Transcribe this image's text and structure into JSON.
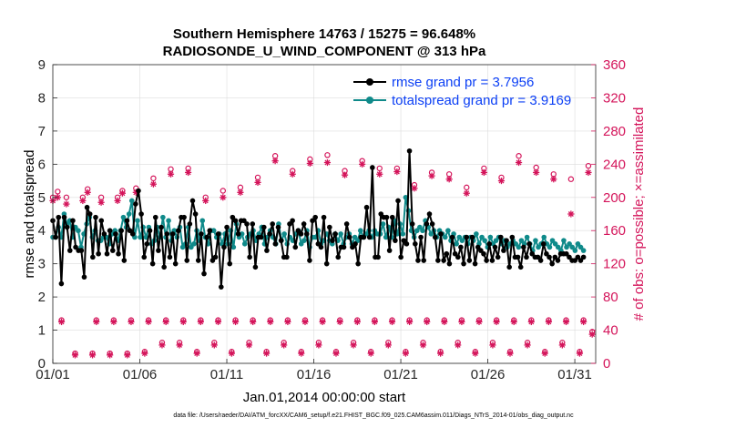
{
  "chart_data": {
    "type": "line",
    "title_line1": "Southern Hemisphere 14763 / 15275 = 96.648%",
    "title_line2": "RADIOSONDE_U_WIND_COMPONENT @ 313 hPa",
    "xlabel": "Jan.01,2014 00:00:00 start",
    "ylabel_left": "rmse and totalspread",
    "ylabel_right": "# of obs: o=possible; ×=assimilated",
    "footer": "data file: /Users/raeder/DAI/ATM_forcXX/CAM6_setup/f.e21.FHIST_BGC.f09_025.CAM6assim.011/Diags_NTrS_2014-01/obs_diag_output.nc",
    "xlim": [
      1,
      32.2
    ],
    "x_ticks": [
      1,
      6,
      11,
      16,
      21,
      26,
      31
    ],
    "x_tick_labels": [
      "01/01",
      "01/06",
      "01/11",
      "01/16",
      "01/21",
      "01/26",
      "01/31"
    ],
    "ylim_left": [
      0,
      9
    ],
    "y_ticks_left": [
      "0",
      "1",
      "2",
      "3",
      "4",
      "5",
      "6",
      "7",
      "8",
      "9"
    ],
    "ylim_right": [
      0,
      360
    ],
    "y_ticks_right": [
      "0",
      "40",
      "80",
      "120",
      "160",
      "200",
      "240",
      "280",
      "320",
      "360"
    ],
    "colors": {
      "rmse": "#000000",
      "spread": "#0f8a8a",
      "obs": "#d4145a",
      "legend_text": "#0b3ff5",
      "axes": "#262626"
    },
    "legend": [
      "rmse grand pr = 3.7956",
      "totalspread grand pr = 3.9169"
    ],
    "rmse": [
      4.3,
      3.8,
      4.4,
      2.4,
      4.4,
      4.1,
      3.4,
      4.3,
      3.5,
      3.4,
      3.4,
      2.6,
      4.7,
      4.5,
      3.2,
      4.4,
      3.3,
      4.3,
      3.9,
      3.3,
      4.0,
      3.4,
      3.9,
      3.3,
      4.0,
      3.1,
      4.3,
      4.0,
      3.9,
      4.8,
      5.2,
      4.5,
      3.2,
      3.6,
      4.0,
      3.0,
      4.4,
      3.4,
      4.1,
      2.9,
      3.9,
      3.2,
      3.9,
      3.0,
      4.0,
      4.4,
      4.4,
      3.1,
      4.2,
      4.9,
      4.5,
      3.1,
      3.9,
      2.7,
      3.8,
      4.0,
      3.1,
      3.2,
      3.9,
      2.3,
      3.5,
      4.1,
      3.0,
      4.4,
      4.3,
      3.9,
      4.3,
      4.3,
      4.2,
      3.2,
      4.2,
      2.9,
      3.8,
      3.8,
      4.1,
      3.4,
      3.9,
      4.2,
      3.6,
      4.1,
      3.7,
      3.2,
      3.2,
      4.2,
      4.3,
      3.5,
      4.0,
      3.9,
      4.2,
      3.9,
      3.1,
      4.3,
      4.4,
      3.6,
      3.5,
      4.4,
      3.0,
      4.1,
      3.7,
      3.9,
      3.2,
      3.5,
      3.5,
      4.2,
      3.8,
      3.5,
      3.6,
      3.0,
      3.8,
      3.8,
      4.7,
      3.8,
      5.9,
      3.2,
      3.2,
      4.5,
      4.4,
      4.4,
      3.4,
      4.4,
      3.7,
      4.9,
      3.2,
      3.7,
      3.6,
      6.4,
      4.2,
      3.6,
      3.1,
      3.8,
      3.1,
      4.2,
      4.5,
      4.2,
      3.8,
      3.1,
      3.9,
      3.1,
      3.3,
      3.0,
      3.8,
      3.3,
      3.2,
      3.5,
      3.0,
      3.8,
      3.1,
      3.8,
      3.0,
      3.5,
      3.4,
      3.3,
      3.1,
      3.6,
      3.1,
      3.5,
      3.2,
      3.8,
      3.4,
      3.7,
      2.9,
      3.8,
      3.2,
      3.2,
      2.9,
      3.5,
      3.2,
      3.6,
      3.3,
      3.2,
      3.2,
      3.1,
      3.6,
      3.3,
      3.2,
      3.0,
      3.2,
      3.1,
      3.3,
      3.3,
      3.3,
      3.2,
      3.1,
      3.1,
      3.2,
      3.1,
      3.2
    ],
    "spread": [
      3.8,
      3.8,
      4.1,
      3.8,
      4.5,
      4.2,
      4.3,
      3.8,
      4.1,
      4.0,
      3.5,
      3.9,
      4.2,
      4.4,
      3.8,
      4.0,
      3.7,
      3.7,
      3.8,
      3.8,
      3.6,
      3.9,
      4.0,
      3.7,
      4.0,
      4.4,
      4.1,
      4.5,
      4.9,
      3.8,
      4.3,
      3.8,
      4.1,
      3.8,
      4.1,
      3.6,
      3.7,
      4.1,
      3.8,
      4.4,
      3.8,
      4.3,
      3.7,
      4.0,
      3.8,
      4.1,
      3.5,
      3.6,
      4.1,
      3.5,
      3.6,
      4.0,
      3.7,
      4.3,
      3.8,
      3.6,
      4.0,
      4.0,
      3.8,
      3.9,
      3.6,
      3.9,
      3.6,
      4.0,
      3.5,
      4.2,
      3.8,
      3.9,
      3.6,
      3.8,
      3.9,
      4.0,
      3.7,
      3.9,
      4.1,
      3.6,
      3.8,
      4.0,
      3.8,
      3.6,
      4.2,
      3.7,
      3.9,
      3.6,
      3.8,
      3.7,
      3.9,
      4.0,
      3.6,
      3.7,
      4.0,
      3.5,
      3.8,
      3.8,
      4.0,
      3.6,
      3.7,
      3.9,
      3.7,
      3.6,
      3.9,
      3.7,
      3.9,
      3.6,
      3.8,
      3.9,
      3.6,
      3.8,
      3.7,
      4.0,
      3.8,
      3.9,
      4.0,
      3.8,
      4.0,
      3.9,
      3.9,
      4.2,
      3.8,
      4.1,
      3.8,
      4.3,
      3.9,
      4.2,
      3.9,
      5.0,
      4.6,
      4.0,
      3.8,
      4.0,
      4.1,
      4.0,
      4.3,
      4.1,
      3.9,
      4.0,
      3.8,
      4.0,
      3.9,
      3.8,
      4.0,
      3.7,
      3.9,
      3.6,
      3.8,
      3.7,
      3.8,
      3.6,
      3.8,
      3.7,
      3.9,
      3.6,
      3.8,
      3.7,
      3.5,
      3.8,
      3.6,
      3.7,
      3.8,
      3.6,
      3.7,
      3.5,
      3.6,
      3.7,
      3.6,
      3.5,
      3.7,
      3.6,
      3.8,
      3.6,
      3.4,
      3.7,
      3.5,
      3.6,
      3.8,
      3.6,
      3.5,
      3.7,
      3.6,
      3.5,
      3.4,
      3.7,
      3.5,
      3.6,
      3.5,
      3.4,
      3.6,
      3.5,
      3.4
    ],
    "obs_possible": [
      [
        1.0,
        200
      ],
      [
        1.28,
        207
      ],
      [
        1.5,
        52
      ],
      [
        1.78,
        200
      ],
      [
        2.28,
        12
      ],
      [
        2.72,
        200
      ],
      [
        3.0,
        210
      ],
      [
        3.28,
        12
      ],
      [
        3.5,
        52
      ],
      [
        3.78,
        200
      ],
      [
        4.28,
        12
      ],
      [
        4.5,
        52
      ],
      [
        4.72,
        200
      ],
      [
        5.0,
        208
      ],
      [
        5.28,
        12
      ],
      [
        5.5,
        52
      ],
      [
        5.78,
        211
      ],
      [
        6.28,
        14
      ],
      [
        6.5,
        52
      ],
      [
        6.78,
        223
      ],
      [
        7.28,
        25
      ],
      [
        7.5,
        52
      ],
      [
        7.78,
        234
      ],
      [
        8.28,
        25
      ],
      [
        8.5,
        52
      ],
      [
        8.78,
        235
      ],
      [
        9.28,
        14
      ],
      [
        9.5,
        52
      ],
      [
        9.78,
        200
      ],
      [
        10.28,
        25
      ],
      [
        10.5,
        52
      ],
      [
        10.78,
        208
      ],
      [
        11.28,
        14
      ],
      [
        11.5,
        52
      ],
      [
        11.78,
        212
      ],
      [
        12.28,
        25
      ],
      [
        12.5,
        52
      ],
      [
        12.78,
        224
      ],
      [
        13.28,
        14
      ],
      [
        13.5,
        52
      ],
      [
        13.78,
        250
      ],
      [
        14.28,
        25
      ],
      [
        14.5,
        52
      ],
      [
        14.78,
        232
      ],
      [
        15.28,
        14
      ],
      [
        15.5,
        52
      ],
      [
        15.78,
        246
      ],
      [
        16.28,
        25
      ],
      [
        16.5,
        52
      ],
      [
        16.78,
        251
      ],
      [
        17.28,
        14
      ],
      [
        17.5,
        52
      ],
      [
        17.78,
        232
      ],
      [
        18.28,
        25
      ],
      [
        18.5,
        52
      ],
      [
        18.78,
        244
      ],
      [
        19.28,
        14
      ],
      [
        19.5,
        52
      ],
      [
        19.78,
        235
      ],
      [
        20.28,
        25
      ],
      [
        20.5,
        52
      ],
      [
        20.78,
        235
      ],
      [
        21.28,
        14
      ],
      [
        21.5,
        52
      ],
      [
        21.78,
        215
      ],
      [
        22.28,
        25
      ],
      [
        22.5,
        52
      ],
      [
        22.78,
        230
      ],
      [
        23.28,
        14
      ],
      [
        23.5,
        52
      ],
      [
        23.78,
        228
      ],
      [
        24.28,
        25
      ],
      [
        24.5,
        52
      ],
      [
        24.78,
        212
      ],
      [
        25.28,
        14
      ],
      [
        25.5,
        52
      ],
      [
        25.78,
        235
      ],
      [
        26.28,
        25
      ],
      [
        26.5,
        52
      ],
      [
        26.78,
        224
      ],
      [
        27.28,
        14
      ],
      [
        27.5,
        52
      ],
      [
        27.78,
        250
      ],
      [
        28.28,
        25
      ],
      [
        28.5,
        52
      ],
      [
        28.78,
        236
      ],
      [
        29.28,
        14
      ],
      [
        29.5,
        52
      ],
      [
        29.78,
        228
      ],
      [
        30.28,
        25
      ],
      [
        30.5,
        52
      ],
      [
        30.78,
        222
      ],
      [
        31.28,
        14
      ],
      [
        31.5,
        52
      ],
      [
        31.78,
        238
      ],
      [
        32.0,
        38
      ]
    ],
    "obs_assimilated": [
      [
        1.0,
        196
      ],
      [
        1.28,
        200
      ],
      [
        1.5,
        50
      ],
      [
        1.78,
        192
      ],
      [
        2.28,
        10
      ],
      [
        2.72,
        196
      ],
      [
        3.0,
        206
      ],
      [
        3.28,
        10
      ],
      [
        3.5,
        50
      ],
      [
        3.78,
        194
      ],
      [
        4.28,
        10
      ],
      [
        4.5,
        50
      ],
      [
        4.72,
        196
      ],
      [
        5.0,
        205
      ],
      [
        5.28,
        10
      ],
      [
        5.5,
        50
      ],
      [
        5.78,
        206
      ],
      [
        6.28,
        12
      ],
      [
        6.5,
        50
      ],
      [
        6.78,
        216
      ],
      [
        7.28,
        22
      ],
      [
        7.5,
        50
      ],
      [
        7.78,
        228
      ],
      [
        8.28,
        22
      ],
      [
        8.5,
        50
      ],
      [
        8.78,
        230
      ],
      [
        9.28,
        12
      ],
      [
        9.5,
        50
      ],
      [
        9.78,
        196
      ],
      [
        10.28,
        22
      ],
      [
        10.5,
        50
      ],
      [
        10.78,
        200
      ],
      [
        11.28,
        12
      ],
      [
        11.5,
        50
      ],
      [
        11.78,
        206
      ],
      [
        12.28,
        22
      ],
      [
        12.5,
        50
      ],
      [
        12.78,
        218
      ],
      [
        13.28,
        12
      ],
      [
        13.5,
        50
      ],
      [
        13.78,
        244
      ],
      [
        14.28,
        22
      ],
      [
        14.5,
        50
      ],
      [
        14.78,
        228
      ],
      [
        15.28,
        12
      ],
      [
        15.5,
        50
      ],
      [
        15.78,
        241
      ],
      [
        16.28,
        22
      ],
      [
        16.5,
        50
      ],
      [
        16.78,
        242
      ],
      [
        17.28,
        12
      ],
      [
        17.5,
        50
      ],
      [
        17.78,
        227
      ],
      [
        18.28,
        22
      ],
      [
        18.5,
        50
      ],
      [
        18.78,
        240
      ],
      [
        19.28,
        12
      ],
      [
        19.5,
        50
      ],
      [
        19.78,
        228
      ],
      [
        20.28,
        22
      ],
      [
        20.5,
        50
      ],
      [
        20.78,
        231
      ],
      [
        21.28,
        12
      ],
      [
        21.5,
        50
      ],
      [
        21.78,
        211
      ],
      [
        22.28,
        22
      ],
      [
        22.5,
        50
      ],
      [
        22.78,
        226
      ],
      [
        23.28,
        12
      ],
      [
        23.5,
        50
      ],
      [
        23.78,
        222
      ],
      [
        24.28,
        22
      ],
      [
        24.5,
        50
      ],
      [
        24.78,
        205
      ],
      [
        25.28,
        12
      ],
      [
        25.5,
        50
      ],
      [
        25.78,
        230
      ],
      [
        26.28,
        22
      ],
      [
        26.5,
        50
      ],
      [
        26.78,
        220
      ],
      [
        27.28,
        12
      ],
      [
        27.5,
        50
      ],
      [
        27.78,
        242
      ],
      [
        28.28,
        22
      ],
      [
        28.5,
        50
      ],
      [
        28.78,
        230
      ],
      [
        29.28,
        12
      ],
      [
        29.5,
        50
      ],
      [
        29.78,
        222
      ],
      [
        30.28,
        22
      ],
      [
        30.5,
        50
      ],
      [
        30.78,
        180
      ],
      [
        31.28,
        12
      ],
      [
        31.5,
        50
      ],
      [
        31.78,
        230
      ],
      [
        32.0,
        35
      ]
    ]
  }
}
